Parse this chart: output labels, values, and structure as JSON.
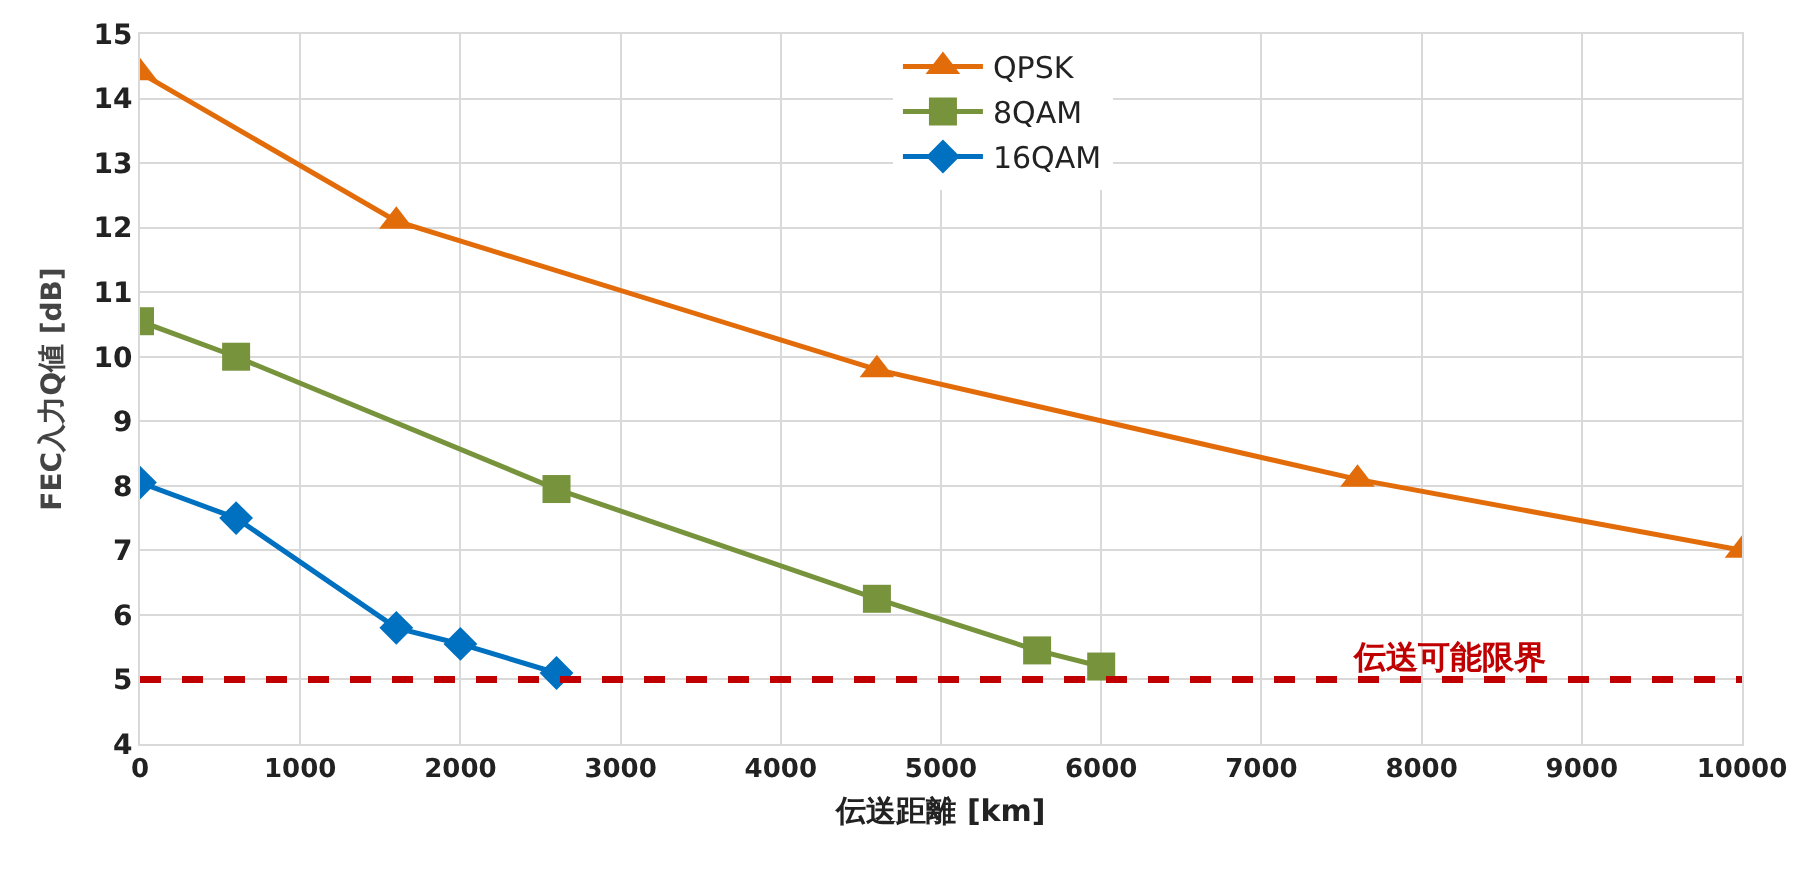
{
  "chart_data": {
    "type": "line",
    "xlabel": "伝送距離 [km]",
    "ylabel": "FEC入力Q値 [dB]",
    "xlim": [
      0,
      10000
    ],
    "xticks": [
      0,
      1000,
      2000,
      3000,
      4000,
      5000,
      6000,
      7000,
      8000,
      9000,
      10000
    ],
    "ylim": [
      4,
      15
    ],
    "yticks": [
      4,
      5,
      6,
      7,
      8,
      9,
      10,
      11,
      12,
      13,
      14,
      15
    ],
    "grid": true,
    "legend": "top right",
    "series": [
      {
        "name": "QPSK",
        "color": "#e36c0a",
        "marker": "triangle",
        "x": [
          0,
          1600,
          4600,
          7600,
          10000
        ],
        "values": [
          14.4,
          12.1,
          9.8,
          8.1,
          7.0
        ]
      },
      {
        "name": "8QAM",
        "color": "#77933c",
        "marker": "square",
        "x": [
          0,
          600,
          2600,
          4600,
          5600,
          6000
        ],
        "values": [
          10.55,
          10.0,
          7.95,
          6.25,
          5.45,
          5.2
        ]
      },
      {
        "name": "16QAM",
        "color": "#0070c0",
        "marker": "diamond",
        "x": [
          0,
          600,
          1600,
          2000,
          2600
        ],
        "values": [
          8.05,
          7.5,
          5.8,
          5.55,
          5.1
        ]
      }
    ],
    "ref_lines": [
      {
        "axis": "y",
        "value": 5,
        "label": "伝送可能限界",
        "color": "#c00000",
        "line_style": "dashed"
      }
    ]
  }
}
